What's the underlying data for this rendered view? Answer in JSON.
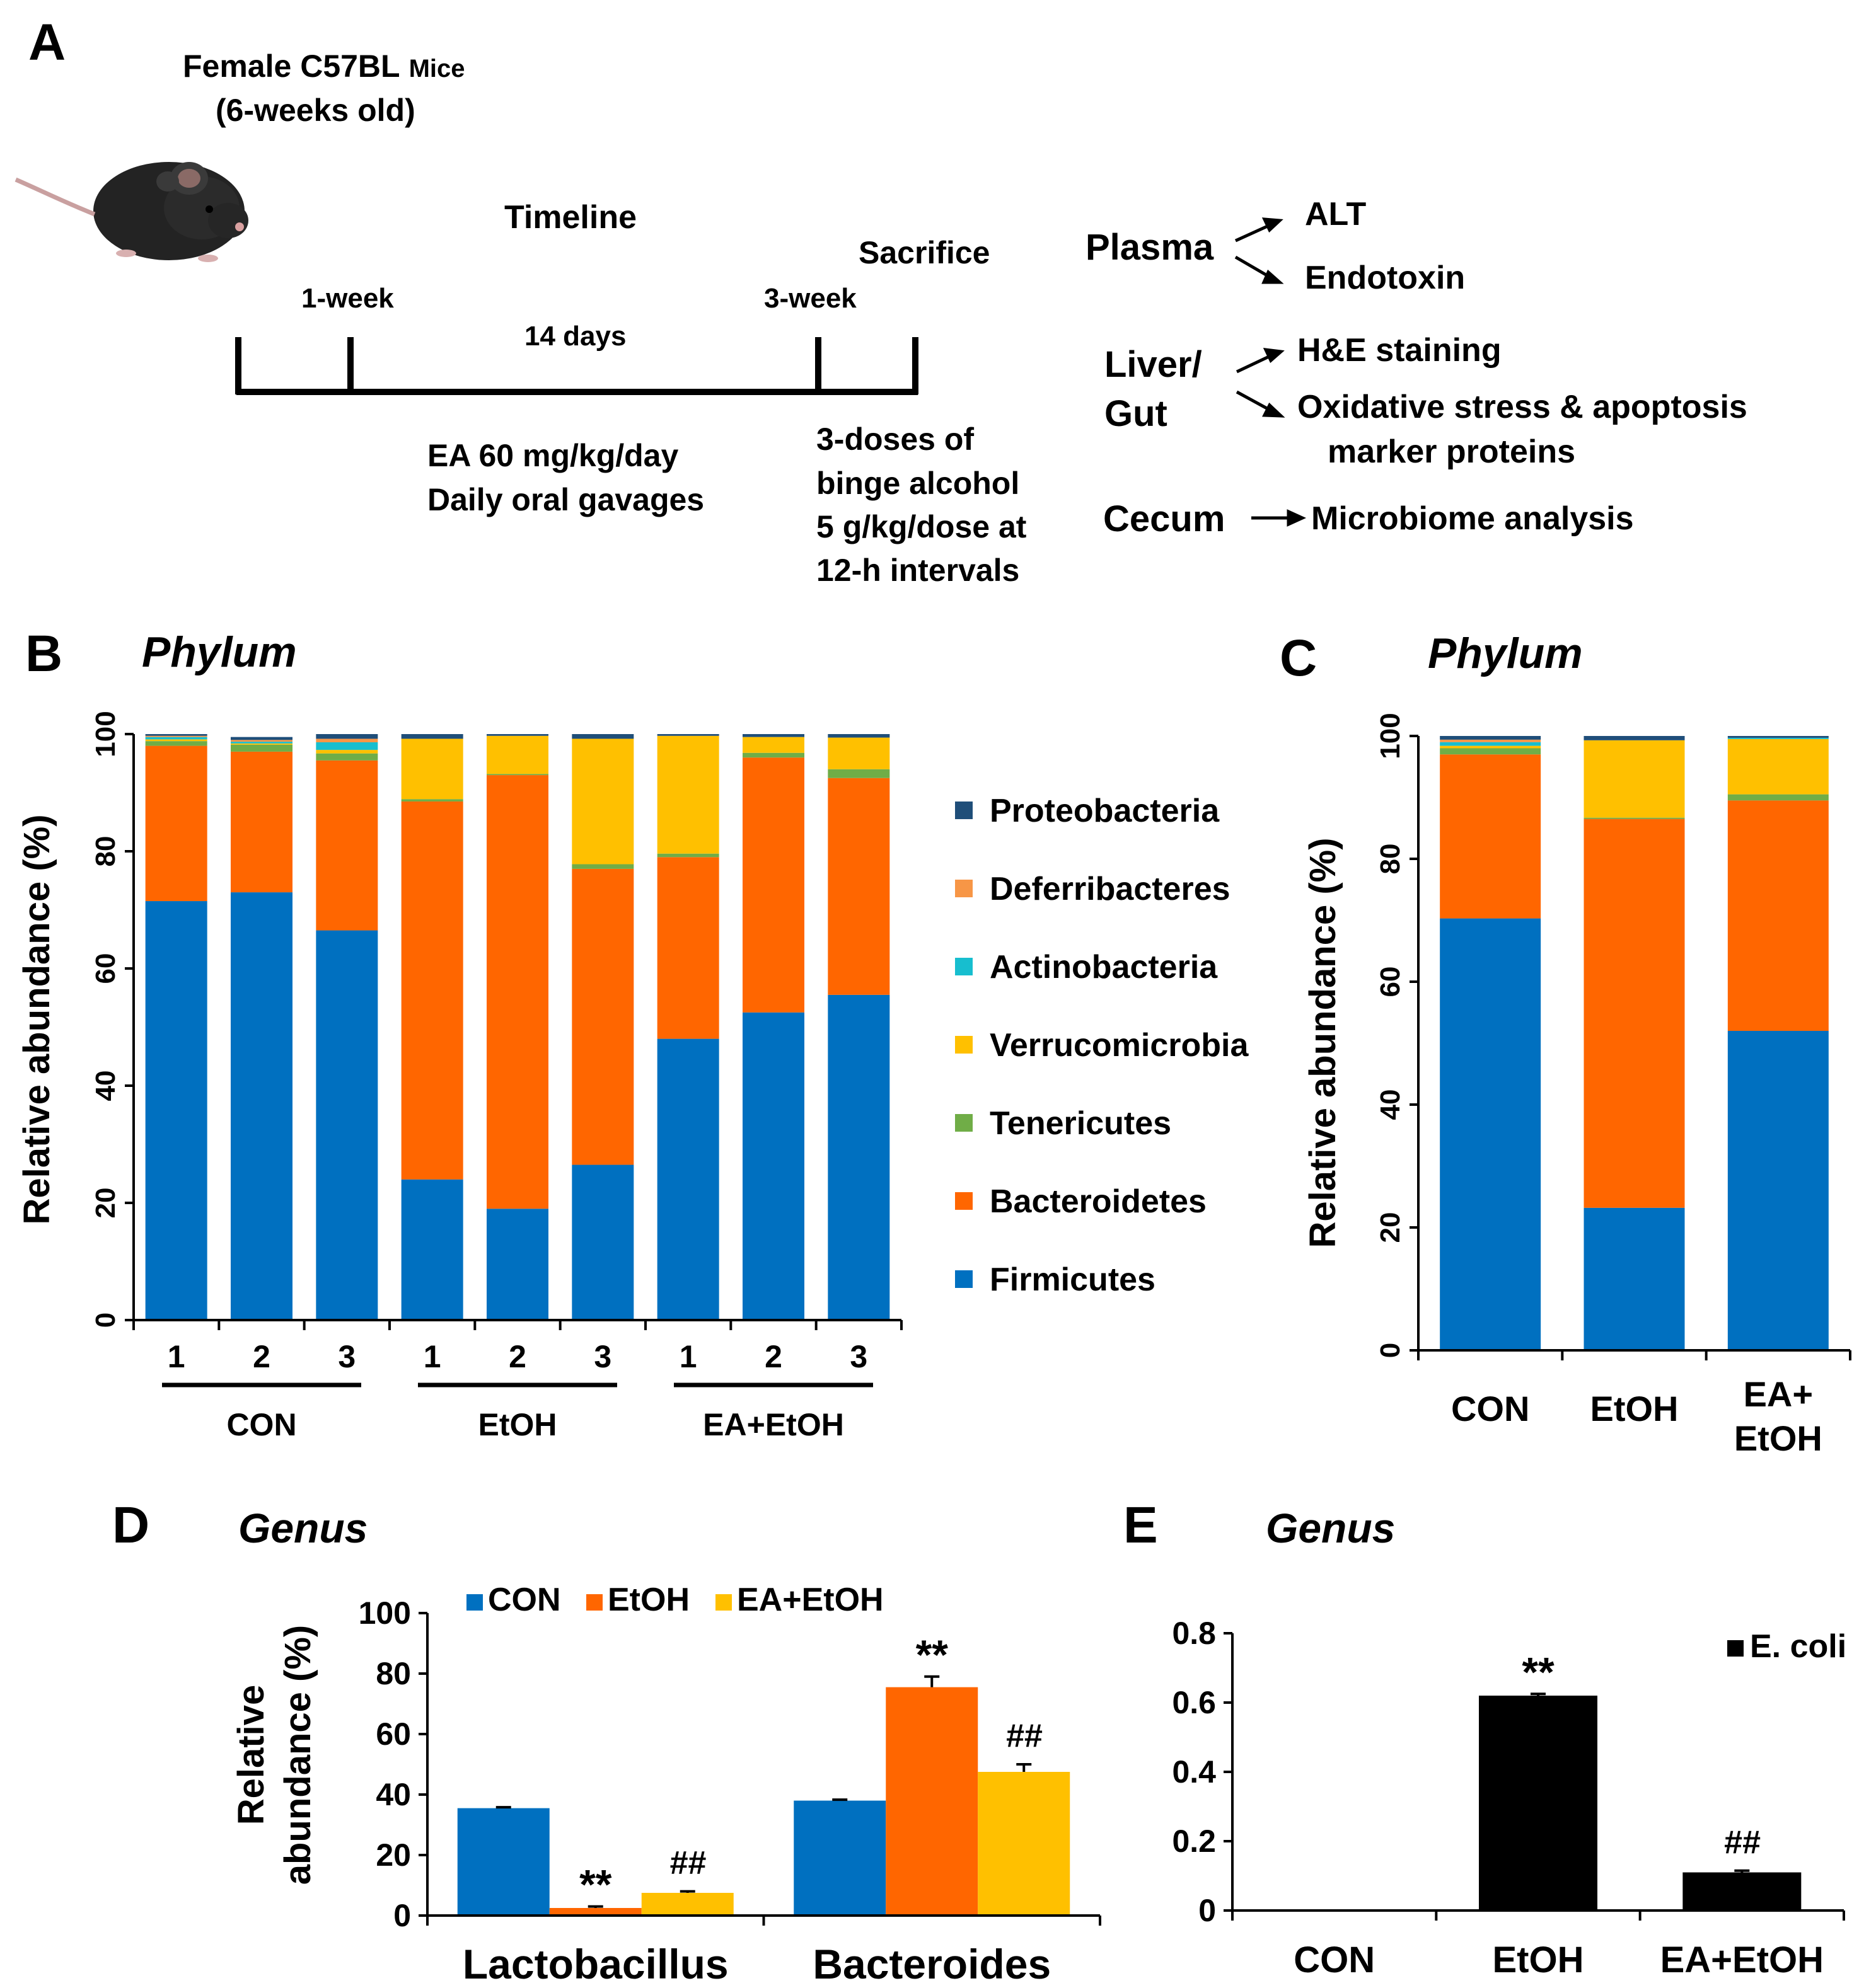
{
  "panelA": {
    "letter": "A",
    "mouse_line1": "Female C57BL",
    "mouse_line1_small": "Mice",
    "mouse_line2": "(6-weeks old)",
    "timeline_title": "Timeline",
    "sacrifice": "Sacrifice",
    "week1": "1-week",
    "days14": "14 days",
    "week3": "3-week",
    "ea_line1": "EA 60 mg/kg/day",
    "ea_line2": "Daily oral gavages",
    "binge_line1": "3-doses of",
    "binge_line2": "binge alcohol",
    "binge_line3": "5 g/kg/dose at",
    "binge_line4": "12-h intervals",
    "plasma": "Plasma",
    "alt": "ALT",
    "endotoxin": "Endotoxin",
    "liver_line1": "Liver/",
    "liver_line2": "Gut",
    "he": "H&E staining",
    "ox_line1": "Oxidative stress & apoptosis",
    "ox_line2": "marker proteins",
    "cecum": "Cecum",
    "microbiome": "Microbiome analysis"
  },
  "colors": {
    "Firmicutes": "#0070C0",
    "Bacteroidetes": "#FF6600",
    "Tenericutes": "#70AD47",
    "Verrucomicrobia": "#FFC000",
    "Actinobacteria": "#17BECF",
    "Deferribacteres": "#F79646",
    "Proteobacteria": "#1F4E79",
    "CON": "#0070C0",
    "EtOH": "#FF6600",
    "EA+EtOH": "#FFC000",
    "E. coli": "#000000"
  },
  "panel_letters": {
    "B": "B",
    "C": "C",
    "D": "D",
    "E": "E"
  },
  "chart_data": [
    {
      "panel": "B",
      "type": "bar",
      "stacked": true,
      "title": "Phylum",
      "ylabel": "Relative abundance (%)",
      "ylim": [
        0,
        100
      ],
      "yticks": [
        "0",
        "20",
        "40",
        "60",
        "80",
        "100"
      ],
      "categories": [
        "1",
        "2",
        "3",
        "1",
        "2",
        "3",
        "1",
        "2",
        "3"
      ],
      "groups": [
        {
          "label": "CON",
          "members": [
            0,
            1,
            2
          ]
        },
        {
          "label": "EtOH",
          "members": [
            3,
            4,
            5
          ]
        },
        {
          "label": "EA+EtOH",
          "members": [
            6,
            7,
            8
          ]
        }
      ],
      "series": [
        {
          "name": "Firmicutes",
          "values": [
            71.5,
            73,
            66.5,
            24,
            19,
            26.5,
            48,
            52.5,
            55.5
          ]
        },
        {
          "name": "Bacteroidetes",
          "values": [
            26.5,
            24,
            29,
            64.5,
            74,
            50.5,
            31,
            43.5,
            37
          ]
        },
        {
          "name": "Tenericutes",
          "values": [
            0.8,
            1.2,
            1.2,
            0.4,
            0.2,
            0.8,
            0.6,
            0.8,
            1.5
          ]
        },
        {
          "name": "Verrucomicrobia",
          "values": [
            0.3,
            0.2,
            0.6,
            10.3,
            6.5,
            21.4,
            20.1,
            2.7,
            5.4
          ]
        },
        {
          "name": "Actinobacteria",
          "values": [
            0.4,
            0.3,
            1.3,
            0,
            0,
            0,
            0,
            0,
            0
          ]
        },
        {
          "name": "Deferribacteres",
          "values": [
            0.2,
            0.3,
            0.6,
            0,
            0,
            0,
            0,
            0,
            0
          ]
        },
        {
          "name": "Proteobacteria",
          "values": [
            0.3,
            0.5,
            0.8,
            0.8,
            0.3,
            0.8,
            0.3,
            0.5,
            0.6
          ]
        }
      ],
      "legend": [
        "Proteobacteria",
        "Deferribacteres",
        "Actinobacteria",
        "Verrucomicrobia",
        "Tenericutes",
        "Bacteroidetes",
        "Firmicutes"
      ]
    },
    {
      "panel": "C",
      "type": "bar",
      "stacked": true,
      "title": "Phylum",
      "ylabel": "Relative abundance (%)",
      "ylim": [
        0,
        100
      ],
      "yticks": [
        "0",
        "20",
        "40",
        "60",
        "80",
        "100"
      ],
      "categories": [
        "CON",
        "EtOH",
        "EA+\nEtOH"
      ],
      "series": [
        {
          "name": "Firmicutes",
          "values": [
            70.3,
            23.2,
            52
          ]
        },
        {
          "name": "Bacteroidetes",
          "values": [
            26.7,
            63.3,
            37.5
          ]
        },
        {
          "name": "Tenericutes",
          "values": [
            1,
            0.2,
            1
          ]
        },
        {
          "name": "Verrucomicrobia",
          "values": [
            0.4,
            12.6,
            9
          ]
        },
        {
          "name": "Actinobacteria",
          "values": [
            0.6,
            0,
            0.2
          ]
        },
        {
          "name": "Deferribacteres",
          "values": [
            0.4,
            0,
            0
          ]
        },
        {
          "name": "Proteobacteria",
          "values": [
            0.6,
            0.7,
            0.3
          ]
        }
      ]
    },
    {
      "panel": "D",
      "type": "bar",
      "title": "Genus",
      "ylabel_line1": "Relative",
      "ylabel_line2": "abundance (%)",
      "ylim": [
        0,
        100
      ],
      "yticks": [
        "0",
        "20",
        "40",
        "60",
        "80",
        "100"
      ],
      "categories": [
        "Lactobacillus",
        "Bacteroides"
      ],
      "series": [
        {
          "name": "CON",
          "values": [
            35.5,
            38
          ],
          "errors": [
            0.3,
            0.3
          ]
        },
        {
          "name": "EtOH",
          "values": [
            2.5,
            75.5
          ],
          "errors": [
            0.5,
            3.5
          ]
        },
        {
          "name": "EA+EtOH",
          "values": [
            7.5,
            47.5
          ],
          "errors": [
            0.5,
            2.5
          ]
        }
      ],
      "annotations": [
        {
          "series": "EtOH",
          "category": "Lactobacillus",
          "text": "**"
        },
        {
          "series": "EA+EtOH",
          "category": "Lactobacillus",
          "text": "##"
        },
        {
          "series": "EtOH",
          "category": "Bacteroides",
          "text": "**"
        },
        {
          "series": "EA+EtOH",
          "category": "Bacteroides",
          "text": "##"
        }
      ]
    },
    {
      "panel": "E",
      "type": "bar",
      "title": "Genus",
      "ylim": [
        0,
        0.8
      ],
      "yticks": [
        "0",
        "0.2",
        "0.4",
        "0.6",
        "0.8"
      ],
      "categories": [
        "CON",
        "EtOH",
        "EA+EtOH"
      ],
      "series": [
        {
          "name": "E. coli",
          "values": [
            0,
            0.62,
            0.11
          ],
          "errors": [
            0,
            0.005,
            0.005
          ]
        }
      ],
      "annotations": [
        {
          "category": "EtOH",
          "text": "**"
        },
        {
          "category": "EA+EtOH",
          "text": "##"
        }
      ]
    }
  ]
}
